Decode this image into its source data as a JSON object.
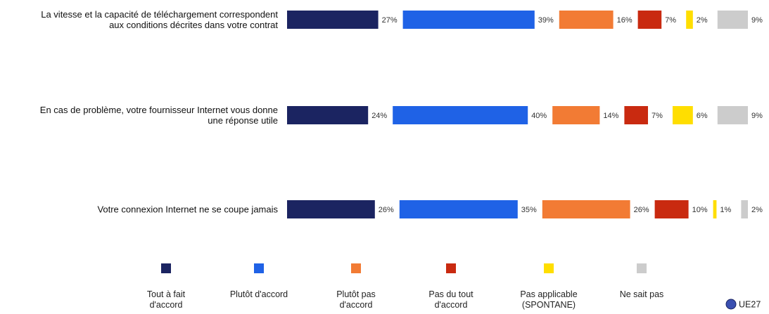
{
  "chart_data": {
    "type": "bar",
    "categories": [
      "La vitesse et la capacité de téléchargement correspondent\naux conditions décrites dans votre contrat",
      "En cas de problème, votre fournisseur Internet vous donne\nune réponse utile",
      "Votre connexion Internet ne se coupe jamais"
    ],
    "series": [
      {
        "name": "Tout à fait\nd'accord",
        "color": "#1b2461",
        "values": [
          27,
          24,
          26
        ],
        "value_labels": [
          "27%",
          "24%",
          "26%"
        ]
      },
      {
        "name": "Plutôt d'accord",
        "color": "#1f62e6",
        "values": [
          39,
          40,
          35
        ],
        "value_labels": [
          "39%",
          "40%",
          "35%"
        ]
      },
      {
        "name": "Plutôt pas\nd'accord",
        "color": "#f27b34",
        "values": [
          16,
          14,
          26
        ],
        "value_labels": [
          "16%",
          "14%",
          "26%"
        ]
      },
      {
        "name": "Pas du tout\nd'accord",
        "color": "#c92a10",
        "values": [
          7,
          7,
          10
        ],
        "value_labels": [
          "7%",
          "7%",
          "10%"
        ]
      },
      {
        "name": "Pas applicable\n(SPONTANE)",
        "color": "#ffde00",
        "values": [
          2,
          6,
          1
        ],
        "value_labels": [
          "2%",
          "6%",
          "1%"
        ]
      },
      {
        "name": "Ne sait pas",
        "color": "#cccccc",
        "values": [
          9,
          9,
          2
        ],
        "value_labels": [
          "9%",
          "9%",
          "2%"
        ]
      }
    ],
    "annotation": "UE27"
  }
}
